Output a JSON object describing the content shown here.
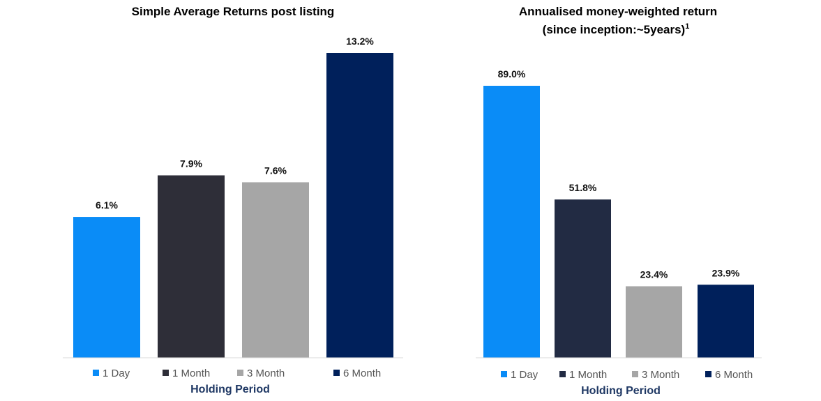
{
  "colors": {
    "1 Day": "#0a8cf7",
    "1 Month": "#2e2e38",
    "3 Month": "#a6a6a6",
    "6 Month": "#00205b",
    "1 Month (chart 2)": "#222b43",
    "axis_title": "#1f3864"
  },
  "chart_data": [
    {
      "type": "bar",
      "title": "Simple Average Returns post listing",
      "xlabel": "Holding Period",
      "ylabel": "",
      "categories": [
        "1 Day",
        "1 Month",
        "3 Month",
        "6 Month"
      ],
      "values": [
        6.1,
        7.9,
        7.6,
        13.2
      ],
      "data_labels": [
        "6.1%",
        "7.9%",
        "7.6%",
        "13.2%"
      ],
      "ylim": [
        0,
        13.2
      ],
      "grid": false,
      "legend": "bottom"
    },
    {
      "type": "bar",
      "title": "Annualised money-weighted return",
      "title_line2": "(since inception:~5years)",
      "title_superscript": "1",
      "xlabel": "Holding Period",
      "ylabel": "",
      "categories": [
        "1 Day",
        "1 Month",
        "3 Month",
        "6 Month"
      ],
      "values": [
        89.0,
        51.8,
        23.4,
        23.9
      ],
      "data_labels": [
        "89.0%",
        "51.8%",
        "23.4%",
        "23.9%"
      ],
      "ylim": [
        0,
        89.0
      ],
      "grid": false,
      "legend": "bottom"
    }
  ]
}
